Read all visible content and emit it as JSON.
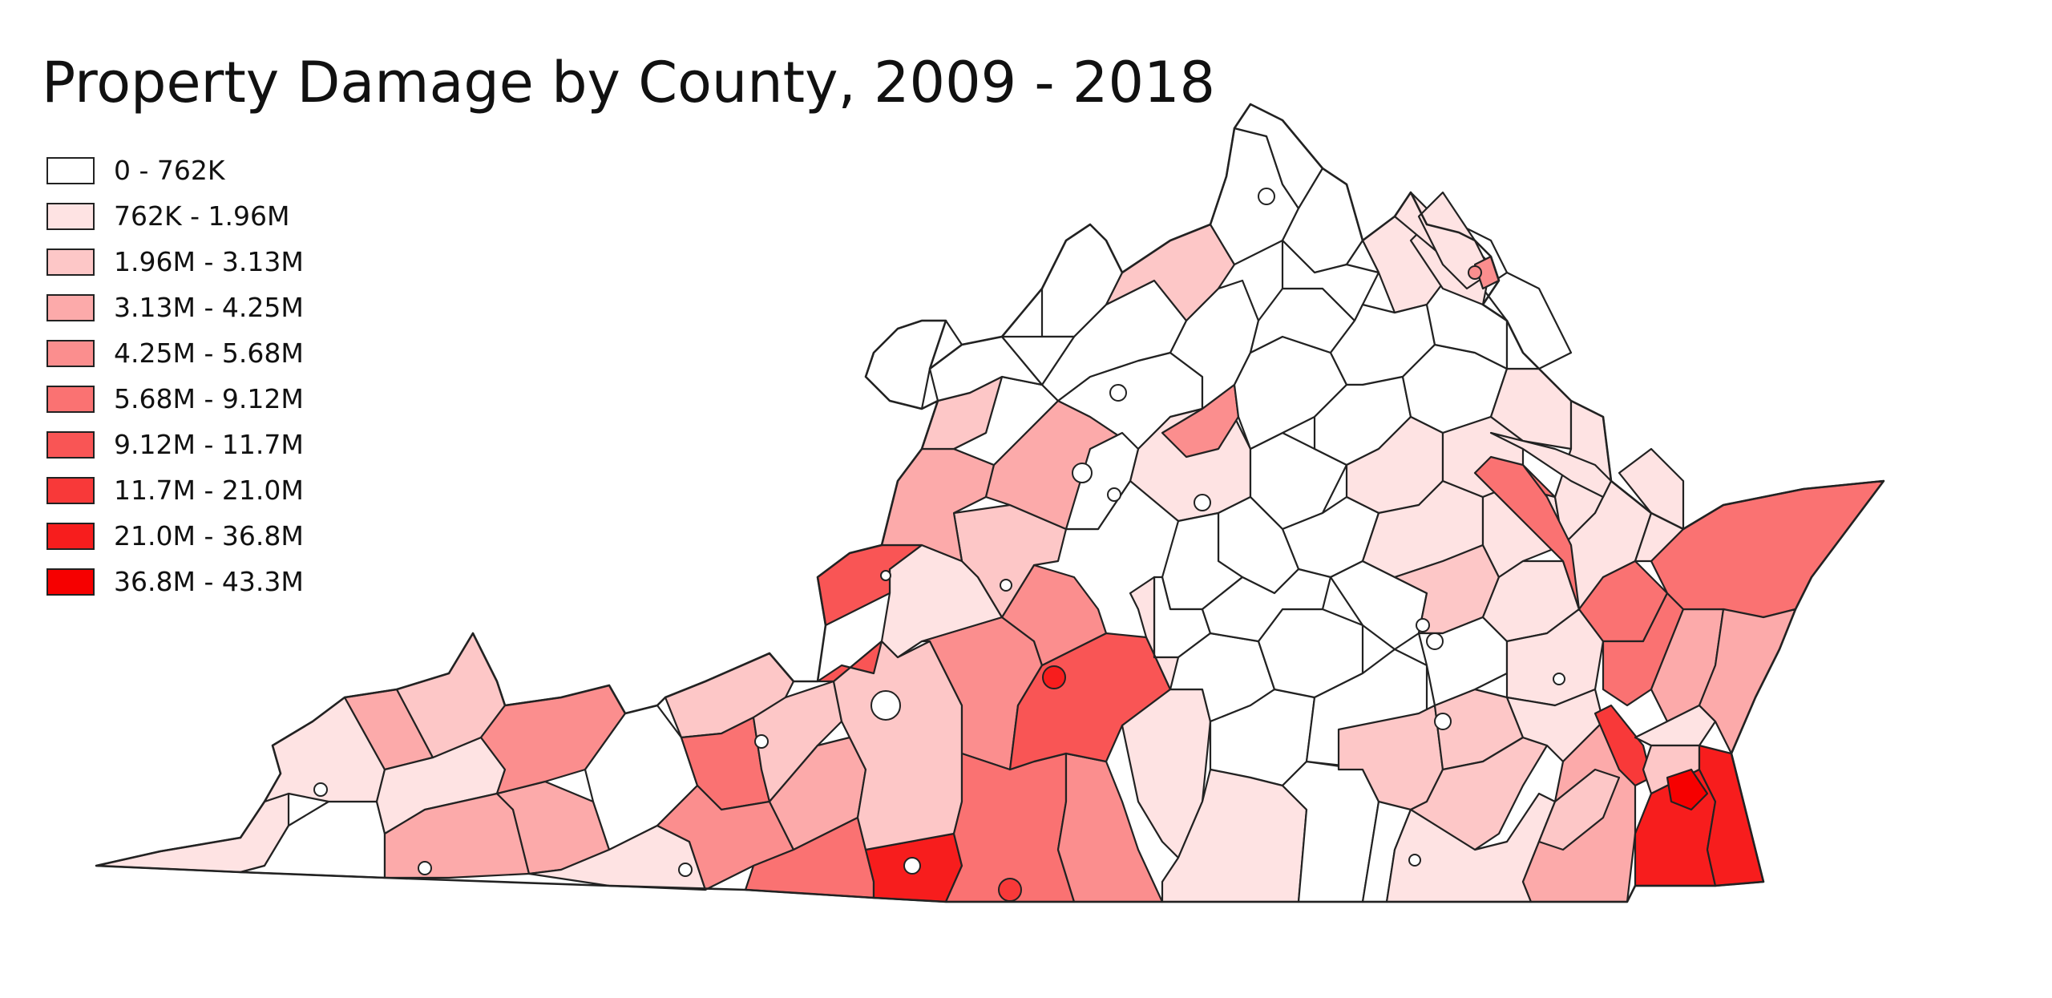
{
  "title": "Property Damage by County, 2009 - 2018",
  "legend": {
    "items": [
      {
        "label": "0 - 762K",
        "color": "#ffffff"
      },
      {
        "label": "762K - 1.96M",
        "color": "#fee3e3"
      },
      {
        "label": "1.96M - 3.13M",
        "color": "#fdc7c7"
      },
      {
        "label": "3.13M - 4.25M",
        "color": "#fcaaaa"
      },
      {
        "label": "4.25M - 5.68M",
        "color": "#fb8e8e"
      },
      {
        "label": "5.68M - 9.12M",
        "color": "#fa7272"
      },
      {
        "label": "9.12M - 11.7M",
        "color": "#f95555"
      },
      {
        "label": "11.7M - 21.0M",
        "color": "#f83939"
      },
      {
        "label": "21.0M - 36.8M",
        "color": "#f71d1d"
      },
      {
        "label": "36.8M - 43.3M",
        "color": "#f60000"
      }
    ]
  },
  "map": {
    "region": "Virginia",
    "unit": "county"
  }
}
